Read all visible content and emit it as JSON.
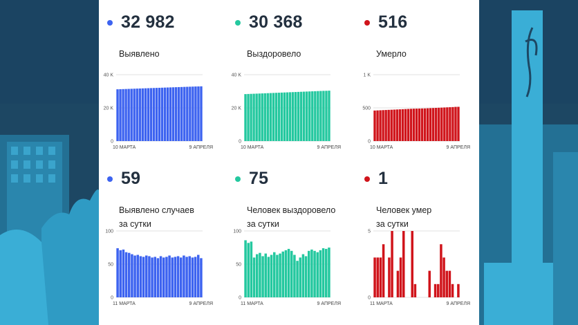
{
  "colors": {
    "blue": "#3d63f0",
    "green": "#24c89f",
    "red": "#d0141b",
    "panel": "#ffffff",
    "background": "#1d4763"
  },
  "cards": [
    {
      "id": "identified",
      "value": "32 982",
      "label_lines": [
        "Выявлено"
      ],
      "color": "#3d63f0"
    },
    {
      "id": "recovered",
      "value": "30 368",
      "label_lines": [
        "Выздоровело"
      ],
      "color": "#24c89f"
    },
    {
      "id": "died",
      "value": "516",
      "label_lines": [
        "Умерло"
      ],
      "color": "#d0141b"
    },
    {
      "id": "identified-daily",
      "value": "59",
      "label_lines": [
        "Выявлено случаев",
        "за сутки"
      ],
      "color": "#3d63f0"
    },
    {
      "id": "recovered-daily",
      "value": "75",
      "label_lines": [
        "Человек выздоровело",
        "за сутки"
      ],
      "color": "#24c89f"
    },
    {
      "id": "died-daily",
      "value": "1",
      "label_lines": [
        "Человек умер",
        "за сутки"
      ],
      "color": "#d0141b"
    }
  ],
  "chart_data": [
    {
      "type": "bar",
      "title": "Выявлено",
      "x_start": "10 МАРТА",
      "x_end": "9 АПРЕЛЯ",
      "ylim": [
        0,
        40000
      ],
      "yticks": [
        0,
        20000,
        40000
      ],
      "ytick_labels": [
        "0",
        "20 K",
        "40 K"
      ],
      "grid": true,
      "values": [
        31200,
        31260,
        31320,
        31380,
        31440,
        31500,
        31560,
        31620,
        31680,
        31740,
        31800,
        31860,
        31920,
        31980,
        32040,
        32100,
        32160,
        32220,
        32280,
        32340,
        32400,
        32460,
        32520,
        32580,
        32640,
        32700,
        32760,
        32820,
        32880,
        32923,
        32982
      ]
    },
    {
      "type": "bar",
      "title": "Выздоровело",
      "x_start": "10 МАРТА",
      "x_end": "9 АПРЕЛЯ",
      "ylim": [
        0,
        40000
      ],
      "yticks": [
        0,
        20000,
        40000
      ],
      "ytick_labels": [
        "0",
        "20 K",
        "40 K"
      ],
      "grid": true,
      "values": [
        28300,
        28370,
        28440,
        28510,
        28580,
        28650,
        28720,
        28790,
        28860,
        28930,
        29000,
        29070,
        29140,
        29210,
        29280,
        29350,
        29420,
        29490,
        29560,
        29630,
        29700,
        29770,
        29840,
        29910,
        29980,
        30050,
        30120,
        30190,
        30260,
        30293,
        30368
      ]
    },
    {
      "type": "bar",
      "title": "Умерло",
      "x_start": "10 МАРТА",
      "x_end": "9 АПРЕЛЯ",
      "ylim": [
        0,
        1000
      ],
      "yticks": [
        0,
        500,
        1000
      ],
      "ytick_labels": [
        "0",
        "500",
        "1 K"
      ],
      "grid": true,
      "values": [
        460,
        462,
        464,
        466,
        468,
        470,
        472,
        474,
        476,
        478,
        480,
        482,
        484,
        486,
        488,
        489,
        490,
        491,
        492,
        494,
        496,
        498,
        500,
        502,
        504,
        506,
        508,
        510,
        512,
        515,
        516
      ]
    },
    {
      "type": "bar",
      "title": "Выявлено случаев за сутки",
      "x_start": "11 МАРТА",
      "x_end": "9 АПРЕЛЯ",
      "ylim": [
        0,
        100
      ],
      "yticks": [
        0,
        50,
        100
      ],
      "ytick_labels": [
        "0",
        "50",
        "100"
      ],
      "grid": true,
      "values": [
        74,
        71,
        72,
        68,
        67,
        65,
        63,
        64,
        62,
        61,
        63,
        62,
        60,
        61,
        59,
        62,
        60,
        61,
        63,
        60,
        61,
        62,
        60,
        63,
        61,
        62,
        60,
        61,
        64,
        59
      ]
    },
    {
      "type": "bar",
      "title": "Человек выздоровело за сутки",
      "x_start": "11 МАРТА",
      "x_end": "9 АПРЕЛЯ",
      "ylim": [
        0,
        100
      ],
      "yticks": [
        0,
        50,
        100
      ],
      "ytick_labels": [
        "0",
        "50",
        "100"
      ],
      "grid": true,
      "values": [
        86,
        82,
        84,
        60,
        65,
        67,
        62,
        66,
        61,
        64,
        68,
        64,
        66,
        69,
        71,
        73,
        70,
        64,
        55,
        60,
        65,
        62,
        70,
        72,
        70,
        68,
        71,
        74,
        73,
        75
      ]
    },
    {
      "type": "bar",
      "title": "Человек умер за сутки",
      "x_start": "11 МАРТА",
      "x_end": "9 АПРЕЛЯ",
      "ylim": [
        0,
        5
      ],
      "yticks": [
        0,
        5
      ],
      "ytick_labels": [
        "0",
        "5"
      ],
      "grid": true,
      "values": [
        3,
        3,
        3,
        4,
        0,
        3,
        5,
        0,
        2,
        3,
        5,
        0,
        0,
        5,
        1,
        0,
        0,
        0,
        0,
        2,
        0,
        1,
        1,
        4,
        3,
        2,
        2,
        1,
        0,
        1
      ]
    }
  ]
}
